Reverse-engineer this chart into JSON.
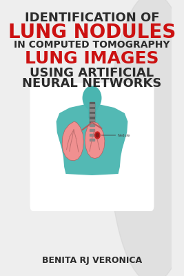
{
  "bg_color": "#eeeeee",
  "title_lines": [
    {
      "text": "IDENTIFICATION OF",
      "color": "#2b2b2b",
      "size": 13,
      "bold": true
    },
    {
      "text": "LUNG NODULES",
      "color": "#cc1111",
      "size": 20,
      "bold": true
    },
    {
      "text": "IN COMPUTED TOMOGRAPHY",
      "color": "#2b2b2b",
      "size": 10,
      "bold": true
    },
    {
      "text": "LUNG IMAGES",
      "color": "#cc1111",
      "size": 18,
      "bold": true
    },
    {
      "text": "USING ARTIFICIAL",
      "color": "#2b2b2b",
      "size": 13,
      "bold": true
    },
    {
      "text": "NEURAL NETWORKS",
      "color": "#2b2b2b",
      "size": 13,
      "bold": true
    }
  ],
  "author": "BENITA RJ VERONICA",
  "author_color": "#2b2b2b",
  "author_size": 9,
  "teal_color": "#4ab5b0",
  "pink_color": "#f09090",
  "dark_red": "#8b1a1a",
  "nodule_color": "#cc2222",
  "shadow_color": "#d0d0d0"
}
